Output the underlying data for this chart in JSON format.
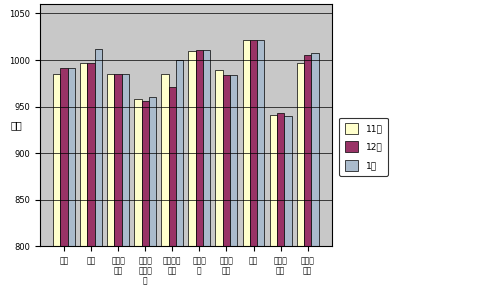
{
  "categories": [
    "食料",
    "住居",
    "光熱・水道",
    "家具・家事用品",
    "被服及び履物",
    "保健医療",
    "交通・通信",
    "教育",
    "教養・娉楽",
    "読貧・雑費"
  ],
  "nov": [
    985,
    997,
    985,
    958,
    985,
    1010,
    989,
    1022,
    941,
    997
  ],
  "dec": [
    991,
    997,
    985,
    956,
    971,
    1011,
    984,
    1022,
    943,
    1005
  ],
  "jan": [
    991,
    1012,
    985,
    960,
    1000,
    1011,
    984,
    1022,
    940,
    1008
  ],
  "color_nov": "#FFFFCC",
  "color_dec": "#993366",
  "color_jan": "#AABBCC",
  "ylabel": "指数",
  "ylim_min": 800,
  "ylim_max": 1060,
  "yticks": [
    800,
    850,
    900,
    950,
    1000,
    1050
  ],
  "legend_nov": "11月",
  "legend_dec": "12月",
  "legend_jan": "1月",
  "bar_width": 0.27,
  "fig_bg": "#FFFFFF",
  "plot_bg": "#C8C8C8"
}
